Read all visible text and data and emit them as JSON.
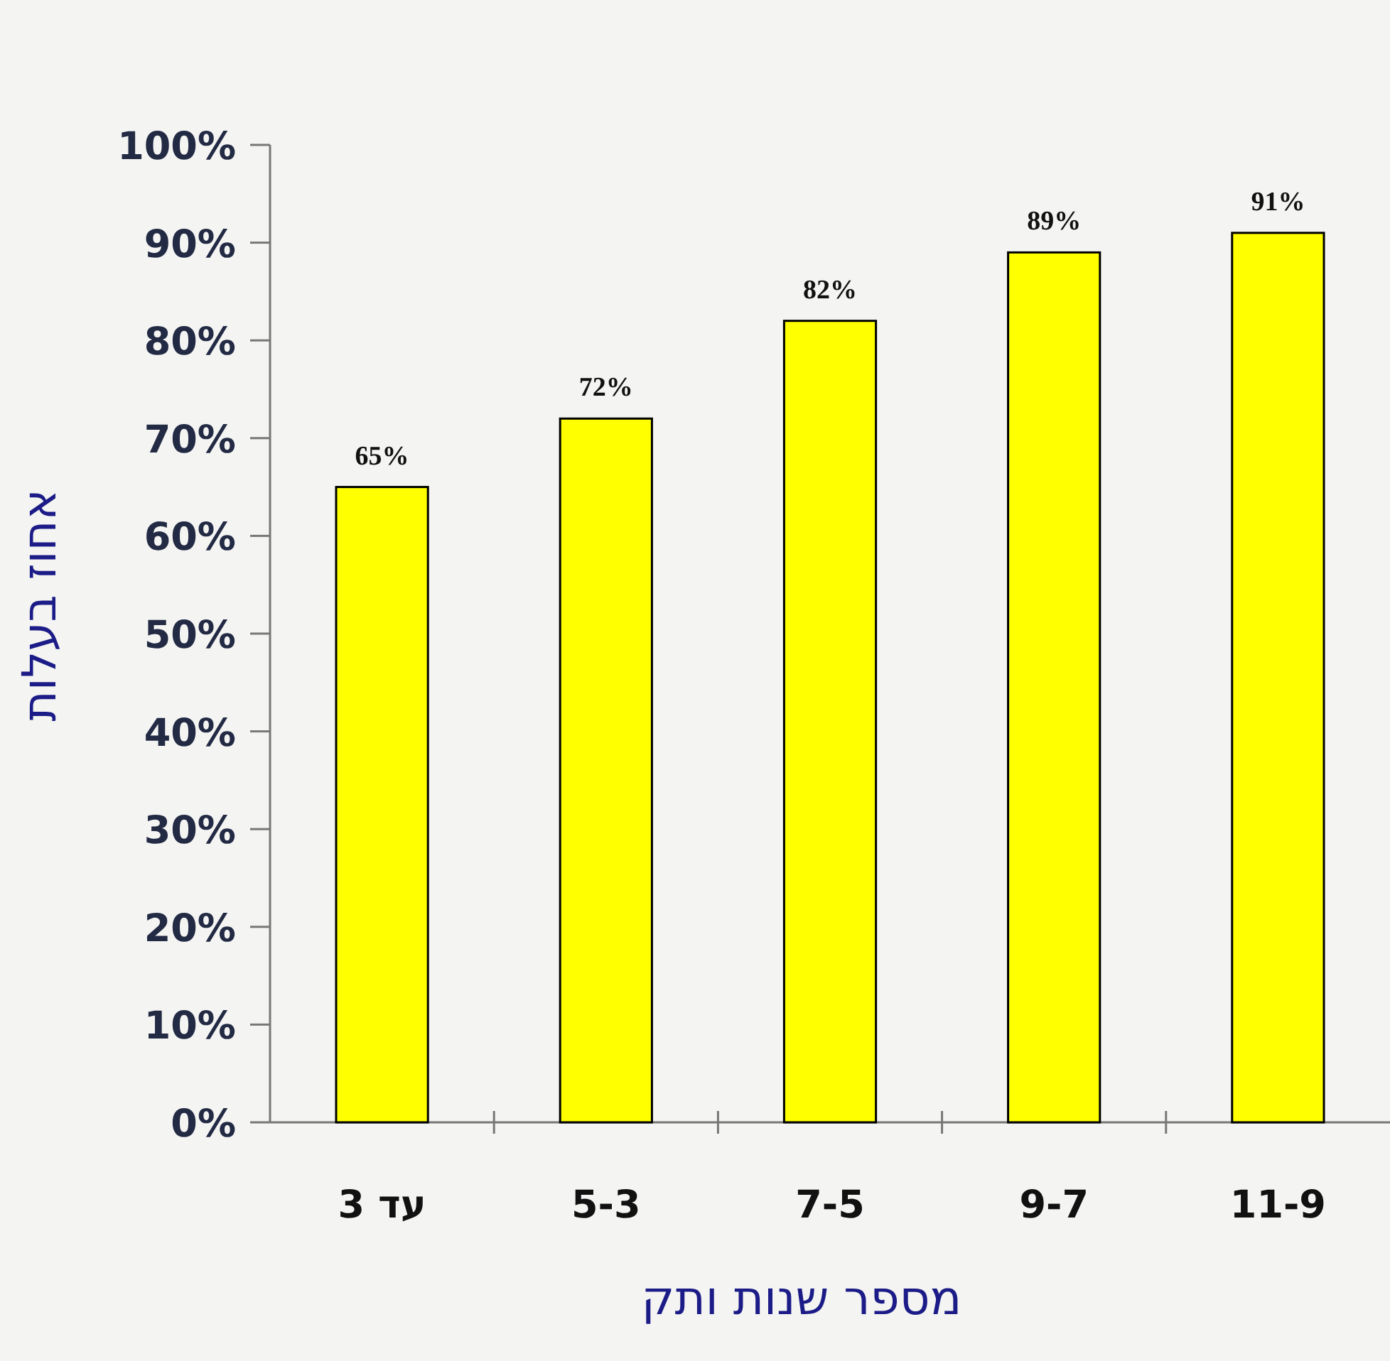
{
  "chart_data": {
    "type": "bar",
    "xlabel": "מספר שנות ותק",
    "ylabel": "אחוז בעלות",
    "categories": [
      "עד 3",
      "5-3",
      "7-5",
      "9-7",
      "11-9"
    ],
    "values": [
      65,
      72,
      82,
      89,
      91
    ],
    "value_labels": [
      "65%",
      "72%",
      "82%",
      "89%",
      "91%"
    ],
    "color": "#ffff00",
    "ylim": [
      0,
      100
    ],
    "yticks": [
      {
        "value": 0,
        "label": "0%"
      },
      {
        "value": 10,
        "label": "10%"
      },
      {
        "value": 20,
        "label": "20%"
      },
      {
        "value": 30,
        "label": "30%"
      },
      {
        "value": 40,
        "label": "40%"
      },
      {
        "value": 50,
        "label": "50%"
      },
      {
        "value": 60,
        "label": "60%"
      },
      {
        "value": 70,
        "label": "70%"
      },
      {
        "value": 80,
        "label": "80%"
      },
      {
        "value": 90,
        "label": "90%"
      },
      {
        "value": 100,
        "label": "100%"
      }
    ]
  }
}
